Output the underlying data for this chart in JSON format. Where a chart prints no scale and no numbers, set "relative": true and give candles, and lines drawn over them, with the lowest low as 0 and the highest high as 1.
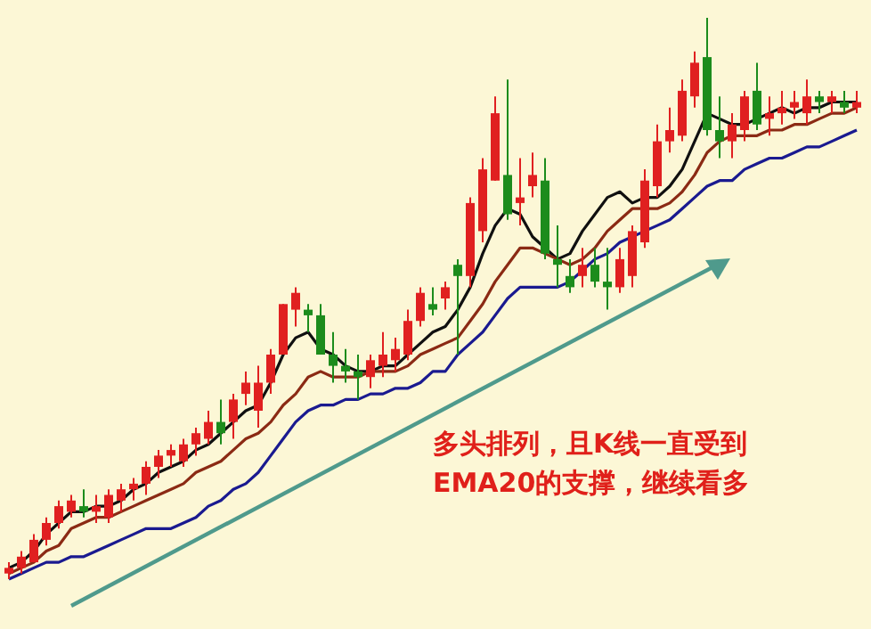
{
  "chart_data": {
    "type": "candlestick",
    "relative": true,
    "categories": [
      null,
      null,
      null,
      null,
      null,
      null,
      null,
      null,
      null,
      null,
      null,
      null,
      null,
      null,
      null,
      null,
      null,
      null,
      null,
      null,
      null,
      null,
      null,
      null,
      null,
      null,
      null,
      null,
      null,
      null,
      null,
      null,
      null,
      null,
      null,
      null,
      null,
      null,
      null,
      null,
      null,
      null,
      null,
      null,
      null,
      null,
      null,
      null,
      null,
      null,
      null,
      null,
      null,
      null,
      null,
      null,
      null,
      null,
      null,
      null,
      null,
      null,
      null,
      null,
      null,
      null,
      null,
      null,
      null
    ],
    "ohlc": [
      [
        0.01,
        0.03,
        0,
        0.02
      ],
      [
        0.02,
        0.05,
        0.01,
        0.04
      ],
      [
        0.03,
        0.08,
        0.03,
        0.07
      ],
      [
        0.07,
        0.11,
        0.06,
        0.1
      ],
      [
        0.1,
        0.14,
        0.09,
        0.13
      ],
      [
        0.12,
        0.15,
        0.11,
        0.14
      ],
      [
        0.13,
        0.16,
        0.11,
        0.12
      ],
      [
        0.12,
        0.15,
        0.1,
        0.13
      ],
      [
        0.11,
        0.16,
        0.1,
        0.15
      ],
      [
        0.14,
        0.17,
        0.12,
        0.16
      ],
      [
        0.16,
        0.18,
        0.14,
        0.17
      ],
      [
        0.17,
        0.21,
        0.15,
        0.2
      ],
      [
        0.2,
        0.23,
        0.18,
        0.22
      ],
      [
        0.22,
        0.24,
        0.2,
        0.23
      ],
      [
        0.21,
        0.25,
        0.2,
        0.24
      ],
      [
        0.24,
        0.27,
        0.22,
        0.26
      ],
      [
        0.25,
        0.3,
        0.24,
        0.28
      ],
      [
        0.28,
        0.32,
        0.24,
        0.26
      ],
      [
        0.28,
        0.33,
        0.25,
        0.32
      ],
      [
        0.33,
        0.37,
        0.31,
        0.35
      ],
      [
        0.3,
        0.38,
        0.27,
        0.35
      ],
      [
        0.35,
        0.41,
        0.33,
        0.4
      ],
      [
        0.4,
        0.49,
        0.4,
        0.49
      ],
      [
        0.48,
        0.52,
        0.45,
        0.51
      ],
      [
        0.48,
        0.49,
        0.44,
        0.47
      ],
      [
        0.47,
        0.49,
        0.4,
        0.4
      ],
      [
        0.4,
        0.44,
        0.35,
        0.38
      ],
      [
        0.38,
        0.41,
        0.35,
        0.37
      ],
      [
        0.37,
        0.4,
        0.32,
        0.36
      ],
      [
        0.36,
        0.4,
        0.34,
        0.39
      ],
      [
        0.38,
        0.44,
        0.36,
        0.4
      ],
      [
        0.39,
        0.43,
        0.37,
        0.41
      ],
      [
        0.4,
        0.48,
        0.39,
        0.46
      ],
      [
        0.46,
        0.52,
        0.45,
        0.51
      ],
      [
        0.49,
        0.52,
        0.47,
        0.48
      ],
      [
        0.5,
        0.53,
        0.48,
        0.52
      ],
      [
        0.56,
        0.57,
        0.4,
        0.54
      ],
      [
        0.54,
        0.68,
        0.52,
        0.67
      ],
      [
        0.62,
        0.75,
        0.6,
        0.73
      ],
      [
        0.71,
        0.86,
        0.71,
        0.83
      ],
      [
        0.72,
        0.89,
        0.64,
        0.65
      ],
      [
        0.67,
        0.75,
        0.63,
        0.68
      ],
      [
        0.7,
        0.76,
        0.68,
        0.72
      ],
      [
        0.71,
        0.75,
        0.57,
        0.58
      ],
      [
        0.57,
        0.63,
        0.52,
        0.56
      ],
      [
        0.54,
        0.57,
        0.51,
        0.52
      ],
      [
        0.54,
        0.59,
        0.52,
        0.56
      ],
      [
        0.56,
        0.59,
        0.52,
        0.53
      ],
      [
        0.53,
        0.59,
        0.48,
        0.52
      ],
      [
        0.52,
        0.59,
        0.51,
        0.57
      ],
      [
        0.54,
        0.63,
        0.52,
        0.62
      ],
      [
        0.6,
        0.73,
        0.59,
        0.71
      ],
      [
        0.7,
        0.81,
        0.68,
        0.78
      ],
      [
        0.78,
        0.84,
        0.76,
        0.8
      ],
      [
        0.79,
        0.89,
        0.78,
        0.87
      ],
      [
        0.86,
        0.94,
        0.84,
        0.92
      ],
      [
        0.93,
        1,
        0.79,
        0.8
      ],
      [
        0.8,
        0.86,
        0.75,
        0.78
      ],
      [
        0.78,
        0.83,
        0.75,
        0.81
      ],
      [
        0.8,
        0.87,
        0.78,
        0.86
      ],
      [
        0.87,
        0.92,
        0.8,
        0.81
      ],
      [
        0.82,
        0.86,
        0.79,
        0.83
      ],
      [
        0.83,
        0.87,
        0.81,
        0.84
      ],
      [
        0.84,
        0.87,
        0.82,
        0.85
      ],
      [
        0.83,
        0.89,
        0.81,
        0.86
      ],
      [
        0.86,
        0.87,
        0.83,
        0.85
      ],
      [
        0.85,
        0.87,
        0.83,
        0.86
      ],
      [
        0.85,
        0.87,
        0.83,
        0.84
      ],
      [
        0.84,
        0.87,
        0.83,
        0.85
      ]
    ],
    "colors": [
      "#e02020",
      "#e02020",
      "#e02020",
      "#e02020",
      "#e02020",
      "#e02020",
      "#1c8c1c",
      "#e02020",
      "#e02020",
      "#e02020",
      "#e02020",
      "#e02020",
      "#e02020",
      "#e02020",
      "#e02020",
      "#e02020",
      "#e02020",
      "#1c8c1c",
      "#e02020",
      "#e02020",
      "#e02020",
      "#e02020",
      "#e02020",
      "#e02020",
      "#1c8c1c",
      "#1c8c1c",
      "#1c8c1c",
      "#1c8c1c",
      "#1c8c1c",
      "#e02020",
      "#e02020",
      "#e02020",
      "#e02020",
      "#e02020",
      "#1c8c1c",
      "#e02020",
      "#1c8c1c",
      "#e02020",
      "#e02020",
      "#e02020",
      "#1c8c1c",
      "#e02020",
      "#e02020",
      "#1c8c1c",
      "#1c8c1c",
      "#1c8c1c",
      "#e02020",
      "#1c8c1c",
      "#1c8c1c",
      "#e02020",
      "#e02020",
      "#e02020",
      "#e02020",
      "#e02020",
      "#e02020",
      "#e02020",
      "#1c8c1c",
      "#1c8c1c",
      "#e02020",
      "#e02020",
      "#1c8c1c",
      "#e02020",
      "#e02020",
      "#e02020",
      "#e02020",
      "#1c8c1c",
      "#e02020",
      "#1c8c1c",
      "#e02020"
    ],
    "series": [
      {
        "type": "line",
        "color": "#101010",
        "values": [
          0.02,
          0.03,
          0.05,
          0.08,
          0.1,
          0.12,
          0.12,
          0.13,
          0.13,
          0.14,
          0.16,
          0.17,
          0.19,
          0.2,
          0.21,
          0.23,
          0.24,
          0.26,
          0.28,
          0.3,
          0.31,
          0.35,
          0.4,
          0.43,
          0.44,
          0.41,
          0.4,
          0.38,
          0.37,
          0.37,
          0.38,
          0.38,
          0.4,
          0.42,
          0.44,
          0.45,
          0.48,
          0.52,
          0.58,
          0.63,
          0.66,
          0.65,
          0.61,
          0.59,
          0.57,
          0.58,
          0.62,
          0.65,
          0.68,
          0.69,
          0.67,
          0.68,
          0.68,
          0.7,
          0.73,
          0.78,
          0.83,
          0.82,
          0.81,
          0.81,
          0.82,
          0.83,
          0.84,
          0.83,
          0.84,
          0.84,
          0.85,
          0.85,
          0.85
        ]
      },
      {
        "type": "line",
        "color": "#8b2a14",
        "values": [
          0.01,
          0.02,
          0.03,
          0.05,
          0.06,
          0.09,
          0.1,
          0.11,
          0.11,
          0.12,
          0.13,
          0.14,
          0.15,
          0.16,
          0.17,
          0.19,
          0.2,
          0.21,
          0.23,
          0.25,
          0.26,
          0.28,
          0.31,
          0.33,
          0.36,
          0.37,
          0.36,
          0.36,
          0.36,
          0.37,
          0.37,
          0.37,
          0.38,
          0.4,
          0.41,
          0.42,
          0.43,
          0.46,
          0.49,
          0.53,
          0.56,
          0.59,
          0.59,
          0.58,
          0.57,
          0.56,
          0.57,
          0.59,
          0.62,
          0.64,
          0.66,
          0.66,
          0.66,
          0.67,
          0.69,
          0.72,
          0.76,
          0.78,
          0.79,
          0.79,
          0.79,
          0.8,
          0.8,
          0.81,
          0.81,
          0.82,
          0.83,
          0.83,
          0.84
        ]
      },
      {
        "type": "line",
        "color": "#1a1a90",
        "values": [
          0,
          0.01,
          0.02,
          0.03,
          0.03,
          0.04,
          0.04,
          0.05,
          0.06,
          0.07,
          0.08,
          0.09,
          0.09,
          0.09,
          0.1,
          0.11,
          0.13,
          0.14,
          0.16,
          0.17,
          0.19,
          0.22,
          0.25,
          0.28,
          0.3,
          0.31,
          0.31,
          0.32,
          0.32,
          0.33,
          0.33,
          0.34,
          0.34,
          0.35,
          0.37,
          0.37,
          0.4,
          0.42,
          0.44,
          0.47,
          0.5,
          0.52,
          0.52,
          0.52,
          0.52,
          0.53,
          0.55,
          0.57,
          0.58,
          0.6,
          0.61,
          0.62,
          0.63,
          0.64,
          0.66,
          0.68,
          0.7,
          0.71,
          0.71,
          0.73,
          0.74,
          0.75,
          0.75,
          0.76,
          0.77,
          0.77,
          0.78,
          0.79,
          0.8
        ]
      }
    ],
    "annotations": [
      "多头排列，且K线一直受到EMA20的支撑，继续看多"
    ]
  }
}
